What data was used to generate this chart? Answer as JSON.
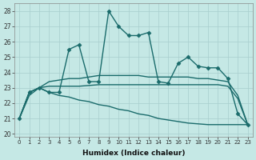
{
  "xlabel": "Humidex (Indice chaleur)",
  "bg_color": "#c5e8e5",
  "grid_color": "#a8cece",
  "line_color": "#1a6b6b",
  "xlim": [
    -0.5,
    23.5
  ],
  "ylim": [
    19.8,
    28.5
  ],
  "yticks": [
    20,
    21,
    22,
    23,
    24,
    25,
    26,
    27,
    28
  ],
  "xticks": [
    0,
    1,
    2,
    3,
    4,
    5,
    6,
    7,
    8,
    9,
    10,
    11,
    12,
    13,
    14,
    15,
    16,
    17,
    18,
    19,
    20,
    21,
    22,
    23
  ],
  "series": [
    {
      "x": [
        0,
        1,
        2,
        3,
        4,
        5,
        6,
        7,
        8,
        9,
        10,
        11,
        12,
        13,
        14,
        15,
        16,
        17,
        18,
        19,
        20,
        21,
        22,
        23
      ],
      "y": [
        21.0,
        22.7,
        23.0,
        22.7,
        22.7,
        25.5,
        25.8,
        23.4,
        23.4,
        28.0,
        27.0,
        26.4,
        26.4,
        26.6,
        23.4,
        23.3,
        24.6,
        25.0,
        24.4,
        24.3,
        24.3,
        23.6,
        21.3,
        20.6
      ],
      "marker": "D",
      "markersize": 2.5,
      "linewidth": 1.0
    },
    {
      "x": [
        0,
        1,
        2,
        3,
        4,
        5,
        6,
        7,
        8,
        9,
        10,
        11,
        12,
        13,
        14,
        15,
        16,
        17,
        18,
        19,
        20,
        21,
        22,
        23
      ],
      "y": [
        21.0,
        22.7,
        23.0,
        23.4,
        23.5,
        23.6,
        23.6,
        23.7,
        23.8,
        23.8,
        23.8,
        23.8,
        23.8,
        23.7,
        23.7,
        23.7,
        23.7,
        23.7,
        23.6,
        23.6,
        23.5,
        23.4,
        22.5,
        20.6
      ],
      "marker": null,
      "markersize": 0,
      "linewidth": 1.0
    },
    {
      "x": [
        0,
        1,
        2,
        3,
        4,
        5,
        6,
        7,
        8,
        9,
        10,
        11,
        12,
        13,
        14,
        15,
        16,
        17,
        18,
        19,
        20,
        21,
        22,
        23
      ],
      "y": [
        21.0,
        22.5,
        23.0,
        23.1,
        23.1,
        23.1,
        23.1,
        23.15,
        23.2,
        23.2,
        23.2,
        23.2,
        23.2,
        23.2,
        23.2,
        23.2,
        23.2,
        23.2,
        23.2,
        23.2,
        23.2,
        23.1,
        22.3,
        20.6
      ],
      "marker": null,
      "markersize": 0,
      "linewidth": 1.0
    },
    {
      "x": [
        0,
        1,
        2,
        3,
        4,
        5,
        6,
        7,
        8,
        9,
        10,
        11,
        12,
        13,
        14,
        15,
        16,
        17,
        18,
        19,
        20,
        21,
        22,
        23
      ],
      "y": [
        21.0,
        22.7,
        23.0,
        22.7,
        22.5,
        22.4,
        22.2,
        22.1,
        21.9,
        21.8,
        21.6,
        21.5,
        21.3,
        21.2,
        21.0,
        20.9,
        20.8,
        20.7,
        20.65,
        20.6,
        20.6,
        20.6,
        20.6,
        20.6
      ],
      "marker": null,
      "markersize": 0,
      "linewidth": 1.0
    }
  ]
}
